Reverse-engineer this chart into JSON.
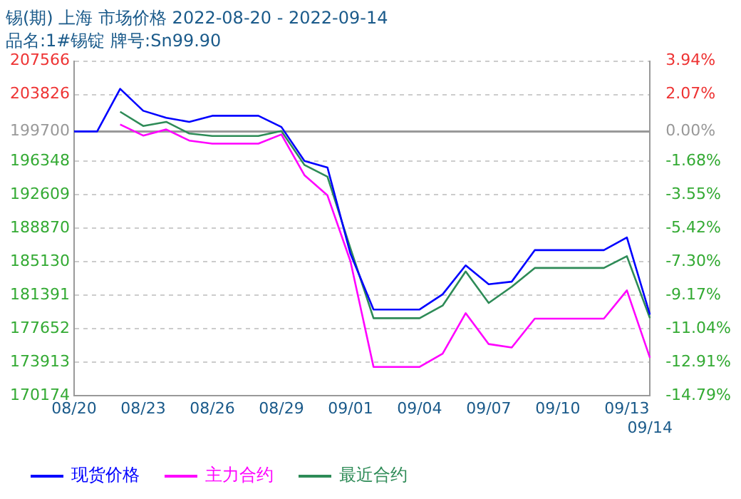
{
  "chart_data": {
    "type": "line",
    "title": "锡(期) 上海 市场价格 2022-08-20 - 2022-09-14",
    "subtitle": "品名:1#锡锭 牌号:Sn99.90",
    "categories": [
      "08/20",
      null,
      null,
      "08/23",
      null,
      null,
      "08/26",
      null,
      null,
      "08/29",
      null,
      null,
      "09/01",
      null,
      null,
      "09/04",
      null,
      null,
      "09/07",
      null,
      null,
      "09/10",
      null,
      null,
      "09/13",
      "09/14"
    ],
    "series": [
      {
        "name": "现货价格",
        "color": "#0000ff",
        "values": [
          199700,
          199700,
          204455,
          202010,
          201230,
          200767,
          201450,
          201450,
          201450,
          200200,
          196400,
          195668,
          186030,
          179810,
          179810,
          179810,
          181510,
          184740,
          182630,
          182920,
          186440,
          186440,
          186440,
          186440,
          187850,
          179230
        ]
      },
      {
        "name": "主力合约",
        "color": "#ff00ff",
        "values": [
          null,
          null,
          200480,
          199240,
          199920,
          198680,
          198340,
          198340,
          198340,
          199360,
          194820,
          192560,
          185180,
          173400,
          173400,
          173400,
          174880,
          179400,
          175950,
          175560,
          178790,
          178790,
          178790,
          178790,
          181950,
          174420
        ]
      },
      {
        "name": "最近合约",
        "color": "#2e8b57",
        "values": [
          null,
          null,
          201900,
          200310,
          200770,
          199470,
          199190,
          199190,
          199190,
          199750,
          195960,
          194650,
          186630,
          178840,
          178840,
          178840,
          180250,
          184060,
          180540,
          182350,
          184450,
          184450,
          184450,
          184450,
          185760,
          178840
        ]
      }
    ],
    "ylim": [
      170174,
      207566
    ],
    "yticks": [
      170174,
      173913,
      177652,
      181391,
      185130,
      188870,
      192609,
      196348,
      199700,
      203826,
      207566
    ],
    "y2lim": [
      -14.79,
      3.94
    ],
    "y2ticks": [
      {
        "value": -14.79,
        "label": "-14.79%"
      },
      {
        "value": -12.91,
        "label": "-12.91%"
      },
      {
        "value": -11.04,
        "label": "-11.04%"
      },
      {
        "value": -9.17,
        "label": "-9.17%"
      },
      {
        "value": -7.3,
        "label": "-7.30%"
      },
      {
        "value": -5.42,
        "label": "-5.42%"
      },
      {
        "value": -3.55,
        "label": "-3.55%"
      },
      {
        "value": -1.68,
        "label": "-1.68%"
      },
      {
        "value": 0,
        "label": "0.00%"
      },
      {
        "value": 2.07,
        "label": "2.07%"
      },
      {
        "value": 3.94,
        "label": "3.94%"
      }
    ],
    "ref_lines": [
      {
        "axis": "y",
        "value": 199700,
        "color": "#999999"
      }
    ],
    "grid": true,
    "legend": "bottom",
    "marker": "none",
    "line_style": "solid"
  }
}
